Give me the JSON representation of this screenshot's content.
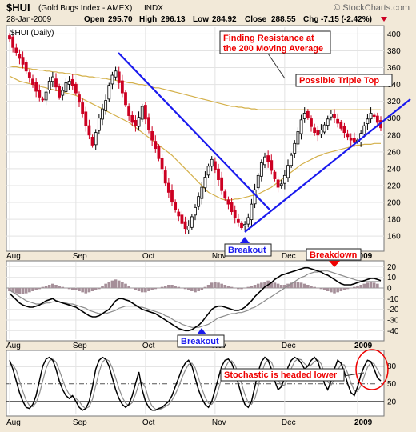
{
  "header": {
    "symbol": "$HUI",
    "description": "(Gold Bugs Index - AMEX)",
    "exchange": "INDX",
    "watermark": "© StockCharts.com",
    "date": "28-Jan-2009",
    "open_label": "Open",
    "open": "295.70",
    "high_label": "High",
    "high": "296.13",
    "low_label": "Low",
    "low": "284.92",
    "close_label": "Close",
    "close": "288.55",
    "chg_label": "Chg",
    "chg": "-7.15 (-2.42%)",
    "legend": "$HUI (Daily)"
  },
  "colors": {
    "background": "#f2e9d8",
    "panel": "#ffffff",
    "up_candle": "#000000",
    "down_candle": "#cc0022",
    "ma": "#d4b04a",
    "trendline": "#1a1aee",
    "annotation": "#ee0000",
    "macd_hist": "#a58f99",
    "signal": "#8c8c8c"
  },
  "annotations": {
    "resistance_1": "Finding Resistance at",
    "resistance_2": "the 200 Moving Average",
    "triple_top": "Possible Triple Top",
    "breakout": "Breakout",
    "breakdown": "Breakdown",
    "macd_breakout": "Breakout",
    "stochastic": "Stochastic is headed lower"
  },
  "chart_data": [
    {
      "type": "candlestick",
      "panel": "price",
      "ylim": [
        144,
        408
      ],
      "yticks": [
        160,
        180,
        200,
        220,
        240,
        260,
        280,
        300,
        320,
        340,
        360,
        380,
        400
      ],
      "x_labels": [
        "Aug",
        "Sep",
        "Oct",
        "Nov",
        "Dec",
        "2009"
      ],
      "x_label_index": [
        0,
        20,
        41,
        62,
        83,
        105
      ],
      "close": [
        394,
        384,
        378,
        371,
        364,
        356,
        348,
        340,
        332,
        325,
        322,
        331,
        344,
        349,
        337,
        325,
        333,
        342,
        344,
        339,
        330,
        319,
        305,
        291,
        280,
        268,
        283,
        300,
        311,
        321,
        339,
        351,
        356,
        342,
        330,
        316,
        303,
        295,
        291,
        301,
        314,
        299,
        286,
        274,
        264,
        252,
        240,
        223,
        212,
        201,
        191,
        184,
        175,
        169,
        172,
        183,
        194,
        207,
        218,
        230,
        243,
        251,
        239,
        227,
        214,
        205,
        198,
        189,
        182,
        176,
        170,
        174,
        182,
        198,
        215,
        232,
        247,
        254,
        248,
        238,
        228,
        218,
        222,
        232,
        244,
        256,
        270,
        284,
        298,
        306,
        301,
        290,
        283,
        280,
        286,
        292,
        299,
        305,
        301,
        294,
        288,
        283,
        278,
        274,
        271,
        274,
        282,
        291,
        299,
        306,
        302,
        295,
        288.55
      ]
    },
    {
      "type": "line",
      "panel": "price",
      "name": "50-day MA",
      "values": [
        350,
        348,
        346,
        344,
        343,
        342,
        341,
        340,
        339,
        338,
        337,
        336,
        335,
        334,
        333,
        332,
        331,
        330,
        329,
        328,
        327,
        325,
        323,
        321,
        319,
        317,
        315,
        313,
        311,
        309,
        307,
        305,
        303,
        301,
        299,
        297,
        295,
        292,
        289,
        286,
        283,
        280,
        277,
        274,
        271,
        268,
        265,
        262,
        259,
        256,
        252,
        248,
        244,
        240,
        236,
        232,
        228,
        224,
        220,
        216,
        212,
        210,
        208,
        206,
        204,
        203,
        203,
        203,
        204,
        204,
        205,
        206,
        207,
        208,
        209,
        210,
        212,
        214,
        216,
        218,
        221,
        224,
        227,
        230,
        233,
        236,
        239,
        242,
        245,
        247,
        249,
        251,
        253,
        255,
        256,
        258,
        259,
        260,
        261,
        262,
        263,
        264,
        265,
        266,
        267,
        268,
        268,
        269,
        269,
        269,
        270,
        270,
        270
      ]
    },
    {
      "type": "line",
      "panel": "price",
      "name": "200-day MA",
      "values": [
        362,
        361,
        361,
        360,
        360,
        359,
        359,
        358,
        358,
        357,
        357,
        356,
        356,
        355,
        355,
        354,
        354,
        353,
        353,
        352,
        352,
        351,
        350,
        350,
        349,
        349,
        348,
        348,
        347,
        347,
        346,
        346,
        345,
        344,
        344,
        343,
        342,
        342,
        341,
        340,
        340,
        339,
        338,
        337,
        336,
        336,
        335,
        334,
        333,
        332,
        331,
        330,
        329,
        328,
        327,
        326,
        325,
        324,
        323,
        322,
        321,
        320,
        319,
        318,
        317,
        316,
        315,
        314,
        314,
        313,
        313,
        312,
        312,
        311,
        311,
        310,
        310,
        310,
        310,
        310,
        310,
        310,
        310,
        310,
        310,
        310,
        310,
        310,
        310,
        310,
        310,
        310,
        310,
        310,
        310,
        310,
        310,
        310,
        310,
        310,
        310,
        310,
        310,
        310,
        310,
        310,
        310,
        310,
        310,
        310,
        310,
        310,
        310
      ]
    },
    {
      "type": "bar",
      "panel": "macd",
      "name": "MACD histogram",
      "ylim": [
        -48,
        24
      ],
      "yticks": [
        -40,
        -30,
        -20,
        -10,
        0,
        10,
        20
      ],
      "values": [
        -3,
        -4,
        -5,
        -6,
        -6,
        -5,
        -4,
        -3,
        -2,
        -1,
        1,
        2,
        3,
        4,
        3,
        2,
        1,
        0,
        -1,
        -2,
        -2,
        -3,
        -4,
        -5,
        -4,
        -3,
        -2,
        -1,
        2,
        4,
        6,
        7,
        8,
        7,
        6,
        4,
        2,
        0,
        -2,
        -3,
        -4,
        -4,
        -3,
        -2,
        -1,
        0,
        1,
        2,
        3,
        3,
        2,
        1,
        0,
        -1,
        -2,
        -3,
        -4,
        -3,
        -2,
        1,
        3,
        5,
        6,
        5,
        4,
        3,
        2,
        1,
        0,
        -1,
        -1,
        0,
        1,
        2,
        3,
        4,
        5,
        6,
        7,
        6,
        5,
        4,
        3,
        3,
        4,
        5,
        6,
        6,
        5,
        4,
        3,
        2,
        1,
        0,
        -1,
        -2,
        -3,
        -4,
        -5,
        -4,
        -3,
        -2,
        -1,
        0,
        1,
        2,
        3,
        4,
        5,
        6,
        5,
        4
      ]
    },
    {
      "type": "line",
      "panel": "macd",
      "name": "MACD line",
      "values": [
        -5,
        -8,
        -11,
        -14,
        -16,
        -17,
        -18,
        -18,
        -17,
        -16,
        -14,
        -12,
        -11,
        -10,
        -12,
        -13,
        -14,
        -15,
        -16,
        -17,
        -18,
        -20,
        -22,
        -24,
        -26,
        -27,
        -27,
        -26,
        -24,
        -22,
        -20,
        -16,
        -12,
        -10,
        -10,
        -11,
        -12,
        -14,
        -16,
        -18,
        -20,
        -21,
        -22,
        -23,
        -24,
        -26,
        -28,
        -30,
        -32,
        -34,
        -36,
        -38,
        -39,
        -40,
        -40,
        -39,
        -37,
        -35,
        -32,
        -28,
        -24,
        -20,
        -18,
        -17,
        -17,
        -18,
        -19,
        -20,
        -21,
        -21,
        -20,
        -18,
        -15,
        -12,
        -8,
        -5,
        -2,
        1,
        3,
        5,
        8,
        10,
        12,
        13,
        14,
        15,
        16,
        17,
        18,
        19,
        19,
        18,
        17,
        16,
        15,
        13,
        12,
        10,
        8,
        6,
        4,
        3,
        3,
        3,
        4,
        5,
        6,
        7,
        8,
        9,
        9,
        8,
        7
      ]
    },
    {
      "type": "line",
      "panel": "macd",
      "name": "Signal line",
      "values": [
        -2,
        -4,
        -6,
        -8,
        -10,
        -12,
        -13,
        -14,
        -15,
        -15,
        -15,
        -14,
        -14,
        -13,
        -13,
        -13,
        -14,
        -14,
        -15,
        -15,
        -16,
        -17,
        -18,
        -19,
        -21,
        -22,
        -23,
        -24,
        -24,
        -24,
        -23,
        -22,
        -21,
        -19,
        -18,
        -17,
        -17,
        -17,
        -17,
        -18,
        -18,
        -19,
        -20,
        -21,
        -22,
        -23,
        -24,
        -26,
        -27,
        -29,
        -31,
        -32,
        -34,
        -35,
        -36,
        -37,
        -37,
        -37,
        -36,
        -35,
        -34,
        -32,
        -30,
        -28,
        -27,
        -26,
        -25,
        -24,
        -24,
        -23,
        -23,
        -22,
        -21,
        -19,
        -18,
        -16,
        -14,
        -12,
        -10,
        -8,
        -6,
        -4,
        -2,
        0,
        2,
        4,
        6,
        8,
        10,
        11,
        13,
        14,
        15,
        15,
        16,
        16,
        16,
        15,
        14,
        13,
        12,
        11,
        10,
        9,
        8,
        7,
        7,
        6,
        6,
        6,
        6,
        6,
        6
      ]
    },
    {
      "type": "line",
      "panel": "stochastic",
      "name": "%K",
      "ylim": [
        -2,
        104
      ],
      "yticks": [
        20,
        50,
        80
      ],
      "values": [
        90,
        75,
        55,
        35,
        20,
        10,
        8,
        15,
        30,
        55,
        80,
        92,
        95,
        90,
        75,
        55,
        40,
        30,
        25,
        30,
        20,
        10,
        5,
        8,
        20,
        45,
        75,
        90,
        95,
        92,
        80,
        60,
        40,
        25,
        15,
        10,
        15,
        30,
        50,
        70,
        40,
        20,
        10,
        5,
        5,
        8,
        10,
        15,
        20,
        30,
        45,
        60,
        75,
        85,
        90,
        80,
        60,
        40,
        25,
        15,
        10,
        20,
        40,
        60,
        80,
        90,
        92,
        85,
        70,
        50,
        30,
        15,
        10,
        20,
        45,
        70,
        88,
        95,
        90,
        75,
        55,
        40,
        45,
        60,
        78,
        90,
        95,
        92,
        85,
        75,
        80,
        90,
        95,
        88,
        70,
        50,
        40,
        55,
        75,
        90,
        85,
        70,
        50,
        35,
        30,
        45,
        65,
        80,
        90,
        88,
        75,
        60,
        55
      ]
    },
    {
      "type": "line",
      "panel": "stochastic",
      "name": "%D",
      "values": [
        85,
        82,
        73,
        55,
        37,
        22,
        13,
        11,
        18,
        33,
        55,
        76,
        89,
        92,
        87,
        73,
        57,
        42,
        32,
        28,
        25,
        20,
        12,
        8,
        11,
        24,
        47,
        70,
        87,
        92,
        89,
        77,
        60,
        42,
        27,
        17,
        13,
        18,
        32,
        50,
        53,
        43,
        23,
        12,
        7,
        6,
        8,
        11,
        15,
        22,
        32,
        45,
        60,
        73,
        83,
        85,
        77,
        60,
        42,
        27,
        17,
        15,
        23,
        40,
        60,
        77,
        87,
        89,
        82,
        68,
        50,
        32,
        18,
        15,
        25,
        45,
        68,
        84,
        91,
        87,
        73,
        57,
        47,
        48,
        61,
        76,
        88,
        92,
        91,
        84,
        80,
        82,
        88,
        91,
        84,
        69,
        53,
        48,
        57,
        73,
        83,
        82,
        68,
        52,
        38,
        37,
        47,
        63,
        78,
        86,
        84,
        74,
        63
      ]
    }
  ]
}
